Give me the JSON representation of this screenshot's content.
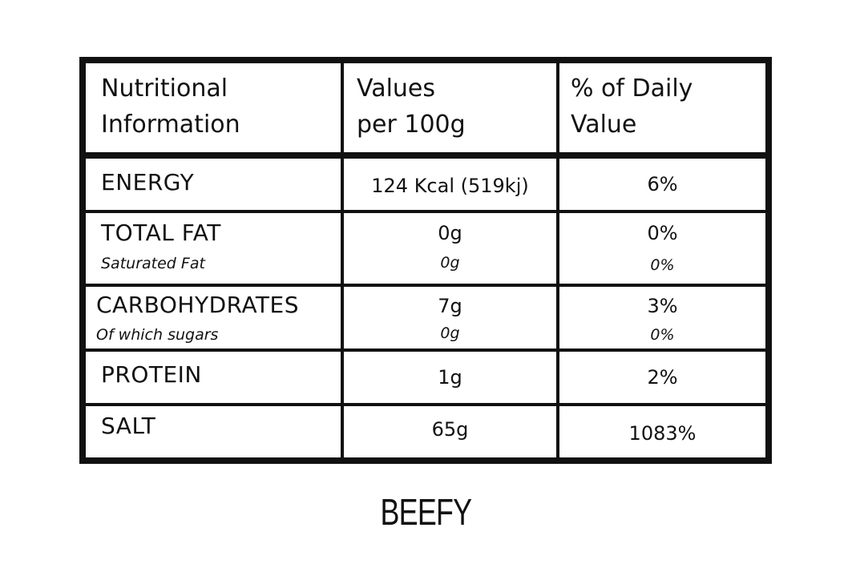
{
  "table": {
    "headers": {
      "nutrient": "Nutritional\nInformation",
      "per100": "Values\nper 100g",
      "daily": "% of Daily\nValue"
    },
    "rows": [
      {
        "name": "ENERGY",
        "value": "124 Kcal (519kj)",
        "daily": "6%"
      },
      {
        "name": "TOTAL FAT",
        "value": "0g",
        "daily": "0%",
        "sub_name": "Saturated Fat",
        "sub_value": "0g",
        "sub_daily": "0%"
      },
      {
        "name": "CARBOHYDRATES",
        "value": "7g",
        "daily": "3%",
        "sub_name": "Of which sugars",
        "sub_value": "0g",
        "sub_daily": "0%"
      },
      {
        "name": "PROTEIN",
        "value": "1g",
        "daily": "2%"
      },
      {
        "name": "SALT",
        "value": "65g",
        "daily": "1083%"
      }
    ]
  },
  "product_name": "BEEFY"
}
